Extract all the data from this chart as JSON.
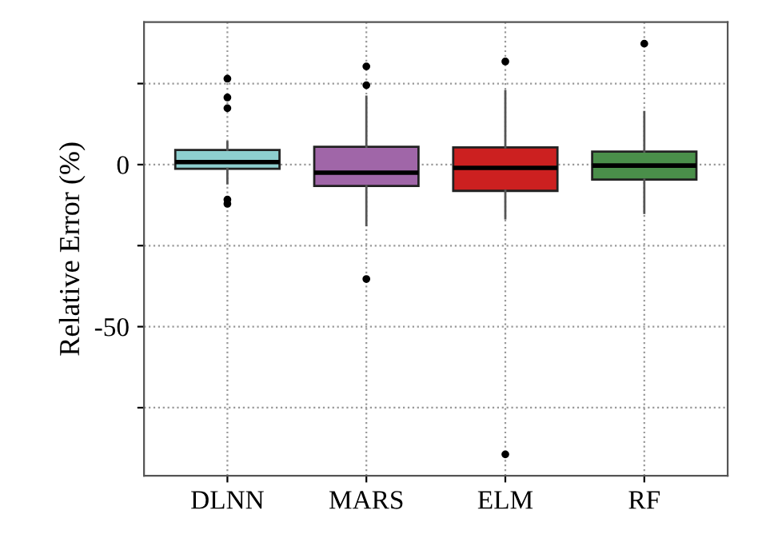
{
  "chart_data": {
    "type": "box",
    "ylabel": "Relative Error (%)",
    "categories": [
      "DLNN",
      "MARS",
      "ELM",
      "RF"
    ],
    "colors": [
      "#8ecfcf",
      "#a066a8",
      "#cc2020",
      "#4a8f4a"
    ],
    "boxes": [
      {
        "low": -5.8,
        "q1": -1.3,
        "median": 0.8,
        "q3": 4.5,
        "high": 7,
        "outliers": [
          26.5,
          20.7,
          17.4,
          -10.8,
          -12.1
        ]
      },
      {
        "low": -18.7,
        "q1": -6.6,
        "median": -2.5,
        "q3": 5.5,
        "high": 21,
        "outliers": [
          30.3,
          24.5,
          -35.3
        ]
      },
      {
        "low": -16.6,
        "q1": -8.1,
        "median": -1,
        "q3": 5.3,
        "high": 22.7,
        "outliers": [
          31.8,
          -89.4
        ]
      },
      {
        "low": -14.9,
        "q1": -4.6,
        "median": -0.3,
        "q3": 4,
        "high": 16.2,
        "outliers": [
          37.3
        ]
      }
    ],
    "ylim": [
      -96,
      44
    ],
    "yticks": [
      {
        "value": 25,
        "label": null
      },
      0,
      {
        "value": -25,
        "label": null
      },
      -50,
      {
        "value": -75,
        "label": null
      }
    ],
    "grid": true,
    "line_style": "dotted"
  }
}
